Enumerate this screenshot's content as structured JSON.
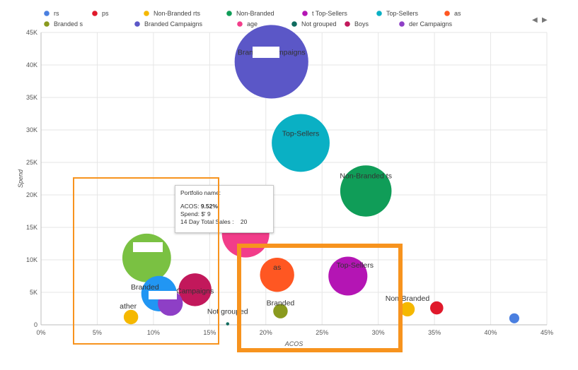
{
  "chart_data": {
    "type": "scatter",
    "subtype": "bubble",
    "title": "",
    "xlabel": "ACOS",
    "ylabel": "Spend",
    "xlim": [
      0,
      45
    ],
    "ylim": [
      0,
      45000
    ],
    "x_ticks": [
      "0%",
      "5%",
      "10%",
      "15%",
      "20%",
      "25%",
      "30%",
      "35%",
      "40%",
      "45%"
    ],
    "y_ticks": [
      "0",
      "5K",
      "10K",
      "15K",
      "20K",
      "25K",
      "30K",
      "35K",
      "40K",
      "45K"
    ],
    "grid": true,
    "legend_position": "top",
    "legend": [
      {
        "label": "rs",
        "color": "#4a7fe0"
      },
      {
        "label": "ps",
        "color": "#e0192b"
      },
      {
        "label": "Non-Branded rts",
        "color": "#f5b800"
      },
      {
        "label": "Non-Branded",
        "color": "#109d58"
      },
      {
        "label": "t Top-Sellers",
        "color": "#b415b4"
      },
      {
        "label": "Top-Sellers",
        "color": "#0ab0c4"
      },
      {
        "label": "as",
        "color": "#ff5722"
      },
      {
        "label": "Branded s",
        "color": "#8a9a1e"
      },
      {
        "label": "Branded Campaigns",
        "color": "#5b57c7"
      },
      {
        "label": "age",
        "color": "#f23d8a"
      },
      {
        "label": "Not grouped",
        "color": "#0f6b5e"
      },
      {
        "label": "Boys",
        "color": "#c2185b"
      },
      {
        "label": "der Campaigns",
        "color": "#8e3fc6"
      }
    ],
    "series": [
      {
        "label": "Branded Campaigns",
        "x": 20.5,
        "y": 40500,
        "size": 2.8,
        "color": "#5b57c7"
      },
      {
        "label": "Top-Sellers",
        "x": 23.1,
        "y": 28000,
        "size": 2.2,
        "color": "#0ab0c4"
      },
      {
        "label": "Non-Branded ts",
        "x": 28.9,
        "y": 20600,
        "size": 1.95,
        "color": "#109d58"
      },
      {
        "label": "",
        "x": 18.2,
        "y": 14000,
        "size": 1.8,
        "color": "#f23d8a"
      },
      {
        "label": "",
        "x": 9.4,
        "y": 10300,
        "size": 1.85,
        "color": "#7ac142"
      },
      {
        "label": "as",
        "x": 21.0,
        "y": 7700,
        "size": 1.3,
        "color": "#ff5722"
      },
      {
        "label": "Top-Sellers",
        "x": 27.3,
        "y": 7500,
        "size": 1.48,
        "color": "#b415b4"
      },
      {
        "label": "Branded",
        "x": 10.5,
        "y": 4800,
        "size": 1.35,
        "color": "#2196f3"
      },
      {
        "label": "Campaigns",
        "x": 13.7,
        "y": 5400,
        "size": 1.25,
        "color": "#c2185b"
      },
      {
        "label": "",
        "x": 11.5,
        "y": 3300,
        "size": 0.95,
        "color": "#8e3fc6"
      },
      {
        "label": "ather",
        "x": 8.0,
        "y": 1200,
        "size": 0.55,
        "color": "#f5b800"
      },
      {
        "label": "Branded",
        "x": 21.3,
        "y": 2100,
        "size": 0.55,
        "color": "#8a9a1e"
      },
      {
        "label": "Not grouped",
        "x": 16.6,
        "y": 150,
        "size": 0.12,
        "color": "#0f6b5e"
      },
      {
        "label": "Non-Branded",
        "x": 32.6,
        "y": 2400,
        "size": 0.55,
        "color": "#f5b800"
      },
      {
        "label": "",
        "x": 35.2,
        "y": 2600,
        "size": 0.5,
        "color": "#e0192b"
      },
      {
        "label": "",
        "x": 42.1,
        "y": 1000,
        "size": 0.38,
        "color": "#4a7fe0"
      }
    ]
  },
  "tooltip": {
    "portfolio_label": "Portfolio name:",
    "acos_label": "ACOS:",
    "acos_value": "9.52%",
    "spend_label": "Spend:",
    "spend_value": "$'          9",
    "sales_label": "14 Day Total Sales :",
    "sales_value": "$          20"
  },
  "legend_nav": {
    "prev": "◀",
    "next": "▶"
  },
  "highlight_colors": {
    "left": "#f7931e",
    "right": "#f7931e"
  }
}
